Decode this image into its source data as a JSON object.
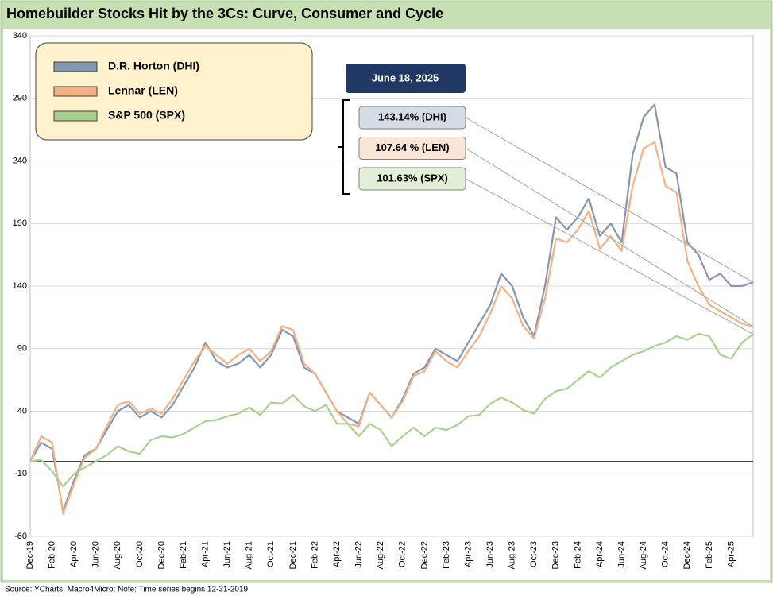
{
  "chart_data": {
    "type": "line",
    "title": "Homebuilder Stocks Hit by the 3Cs: Curve, Consumer and Cycle",
    "source": "Source: YCharts, Macro4Micro; Note: Time series begins 12-31-2019",
    "date_label": "June 18, 2025",
    "annotations": [
      "143.14% (DHI)",
      "107.64 % (LEN)",
      "101.63% (SPX)"
    ],
    "categories": [
      "Dec-19",
      null,
      "Feb-20",
      null,
      "Apr-20",
      null,
      "Jun-20",
      null,
      "Aug-20",
      null,
      "Oct-20",
      null,
      "Dec-20",
      null,
      "Feb-21",
      null,
      "Apr-21",
      null,
      "Jun-21",
      null,
      "Aug-21",
      null,
      "Oct-21",
      null,
      "Dec-21",
      null,
      "Feb-22",
      null,
      "Apr-22",
      null,
      "Jun-22",
      null,
      "Aug-22",
      null,
      "Oct-22",
      null,
      "Dec-22",
      null,
      "Feb-23",
      null,
      "Apr-23",
      null,
      "Jun-23",
      null,
      "Aug-23",
      null,
      "Oct-23",
      null,
      "Dec-23",
      null,
      "Feb-24",
      null,
      "Apr-24",
      null,
      "Jun-24",
      null,
      "Aug-24",
      null,
      "Oct-24",
      null,
      "Dec-24",
      null,
      "Feb-25",
      null,
      "Apr-25",
      null,
      null
    ],
    "series": [
      {
        "name": "D.R. Horton (DHI)",
        "color": "#8497b0",
        "values": [
          0,
          15,
          10,
          -40,
          -15,
          5,
          10,
          25,
          40,
          45,
          35,
          40,
          35,
          45,
          60,
          75,
          95,
          80,
          75,
          78,
          85,
          75,
          85,
          105,
          100,
          75,
          70,
          55,
          40,
          35,
          30,
          55,
          45,
          35,
          50,
          70,
          75,
          90,
          85,
          80,
          95,
          110,
          125,
          150,
          140,
          115,
          100,
          140,
          195,
          185,
          195,
          210,
          180,
          190,
          175,
          245,
          275,
          285,
          235,
          230,
          175,
          165,
          145,
          150,
          140,
          140,
          143.14
        ]
      },
      {
        "name": "Lennar (LEN)",
        "color": "#f4b183",
        "values": [
          0,
          20,
          15,
          -42,
          -18,
          3,
          10,
          28,
          45,
          48,
          38,
          42,
          38,
          50,
          65,
          80,
          92,
          85,
          78,
          85,
          90,
          80,
          88,
          108,
          105,
          78,
          70,
          55,
          40,
          30,
          28,
          55,
          45,
          35,
          48,
          68,
          72,
          88,
          80,
          75,
          88,
          100,
          118,
          140,
          130,
          108,
          98,
          130,
          178,
          175,
          185,
          200,
          170,
          180,
          168,
          220,
          250,
          255,
          220,
          215,
          160,
          140,
          125,
          120,
          115,
          110,
          107.64
        ]
      },
      {
        "name": "S&P 500 (SPX)",
        "color": "#a9d18e",
        "values": [
          0,
          1,
          -8,
          -20,
          -10,
          -5,
          0,
          5,
          12,
          8,
          6,
          17,
          20,
          19,
          22,
          27,
          32,
          33,
          36,
          38,
          43,
          37,
          47,
          46,
          53,
          44,
          40,
          45,
          30,
          30,
          20,
          30,
          25,
          12,
          20,
          27,
          20,
          27,
          25,
          29,
          36,
          37,
          46,
          51,
          47,
          41,
          38,
          50,
          56,
          58,
          65,
          72,
          67,
          75,
          80,
          85,
          88,
          92,
          95,
          100,
          97,
          102,
          100,
          85,
          82,
          95,
          101.63
        ]
      }
    ],
    "ylim": [
      -60,
      340
    ],
    "yticks": [
      -60,
      -10,
      40,
      90,
      140,
      190,
      240,
      290,
      340
    ],
    "grid": true
  }
}
